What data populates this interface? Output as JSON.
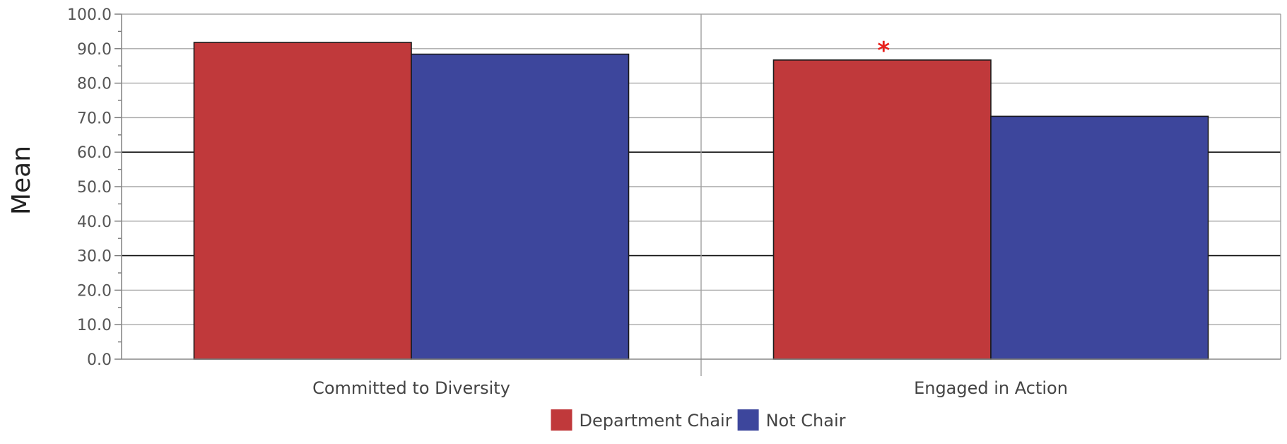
{
  "chart_data": {
    "type": "bar",
    "title": "",
    "xlabel": "",
    "ylabel": "Mean",
    "ylim": [
      0,
      100
    ],
    "yticks": [
      "0.0",
      "10.0",
      "20.0",
      "30.0",
      "40.0",
      "50.0",
      "60.0",
      "70.0",
      "80.0",
      "90.0",
      "100.0"
    ],
    "grid": true,
    "legend_position": "bottom-center",
    "categories": [
      "Committed to Diversity",
      "Engaged in Action"
    ],
    "series": [
      {
        "name": "Department Chair",
        "color": "#c0393b",
        "values": [
          91.8,
          86.7
        ]
      },
      {
        "name": "Not Chair",
        "color": "#3d469c",
        "values": [
          88.4,
          70.4
        ]
      }
    ],
    "annotations": [
      {
        "text": "*",
        "category": "Engaged in Action",
        "series": "Department Chair",
        "color": "#e8201c"
      }
    ]
  }
}
